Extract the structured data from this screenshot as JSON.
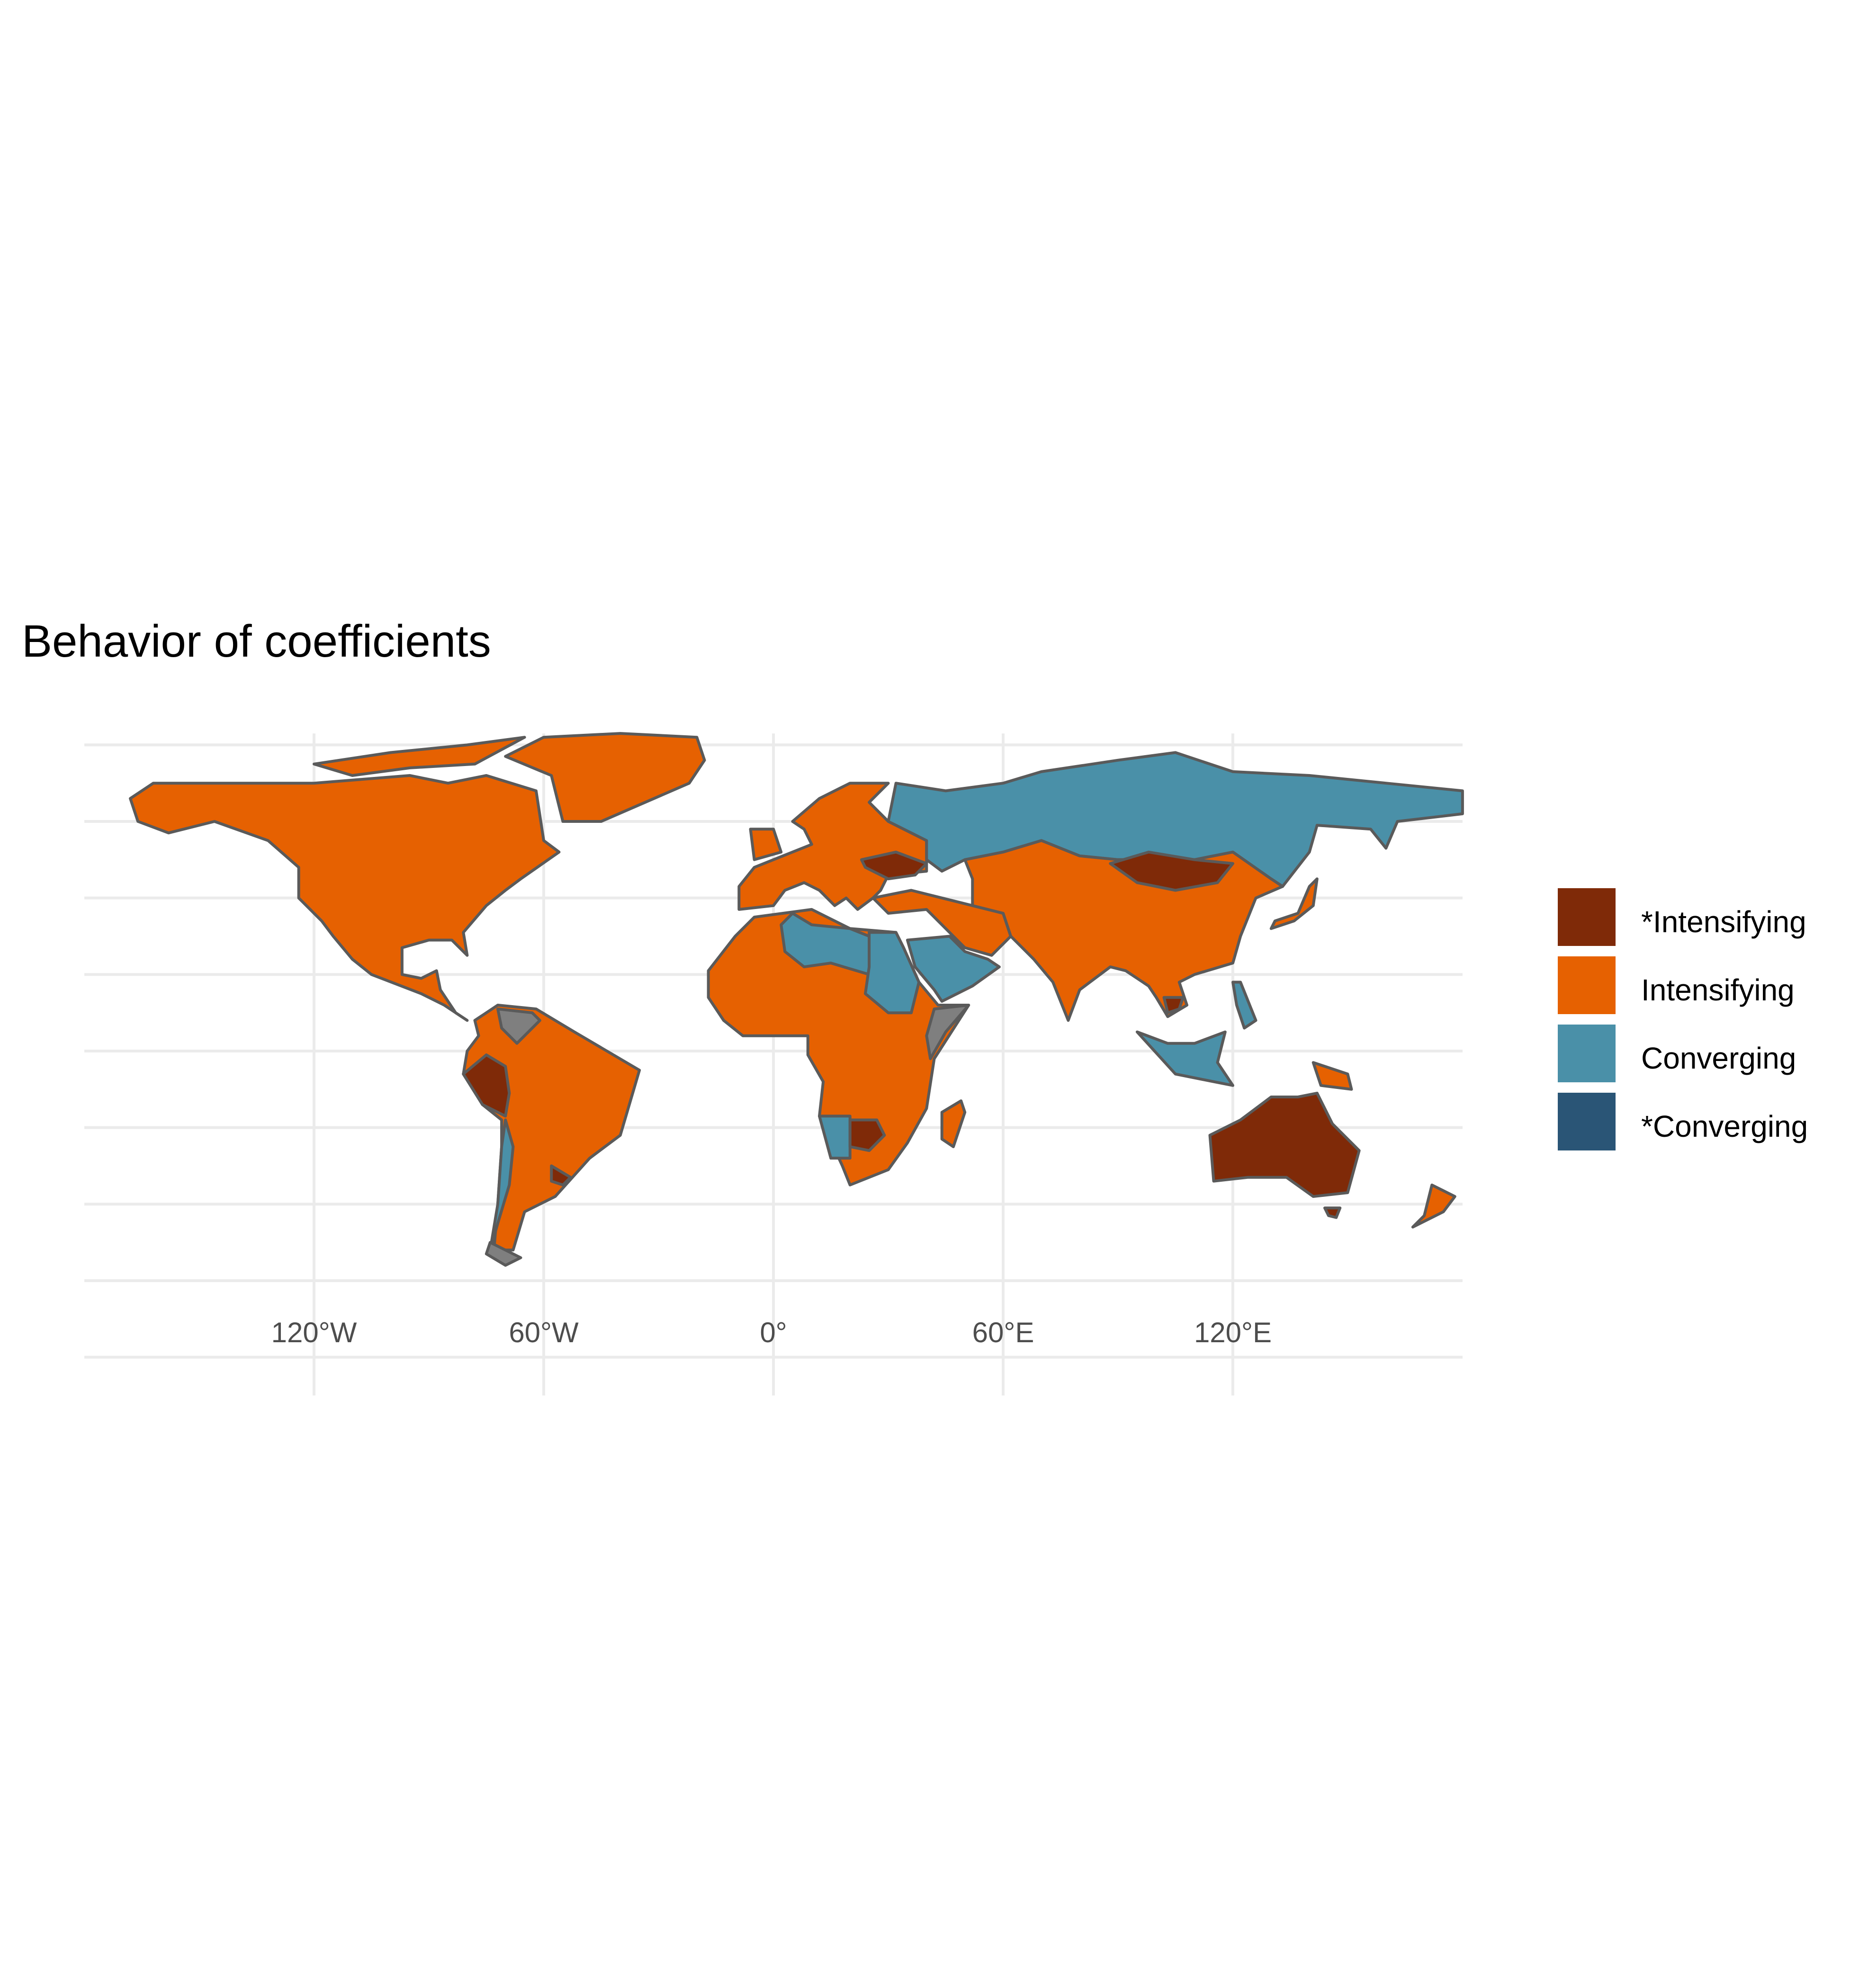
{
  "title": "Behavior of coefficients",
  "map": {
    "type": "choropleth",
    "projection": "equirectangular",
    "graticule": true,
    "background_color": "#ffffff",
    "border_color": "#5a5a5a",
    "no_data_color": "#7f7f7f",
    "x_axis_ticks": [
      "120°W",
      "60°W",
      "0°",
      "60°E",
      "120°E"
    ],
    "legend": {
      "position": "right",
      "items": [
        {
          "label": "*Intensifying",
          "color": "#7f2a08"
        },
        {
          "label": "Intensifying",
          "color": "#e66101"
        },
        {
          "label": "Converging",
          "color": "#4a90a8"
        },
        {
          "label": "*Converging",
          "color": "#2a5576"
        }
      ]
    },
    "regions": {
      "*Intensifying": [
        "Ukraine",
        "Mongolia",
        "Australia",
        "Peru",
        "Botswana",
        "Uruguay",
        "Cambodia"
      ],
      "Intensifying": [
        "Canada",
        "United States",
        "Mexico",
        "Greenland",
        "Brazil",
        "Argentina",
        "Colombia",
        "Bolivia",
        "Western Europe",
        "Western & Central Africa",
        "Southern Africa",
        "Madagascar",
        "China",
        "India",
        "Kazakhstan",
        "Iran",
        "Turkey",
        "Southeast Asia mainland",
        "Japan",
        "New Zealand",
        "Papua New Guinea"
      ],
      "Converging": [
        "Russia",
        "Libya",
        "Egypt",
        "Sudan",
        "Saudi Arabia",
        "Afghanistan",
        "Chile",
        "Namibia",
        "Malaysia",
        "Indonesia",
        "Philippines"
      ],
      "*Converging": [],
      "No data": [
        "Venezuela",
        "Somalia",
        "Ethiopia (part)"
      ]
    }
  }
}
